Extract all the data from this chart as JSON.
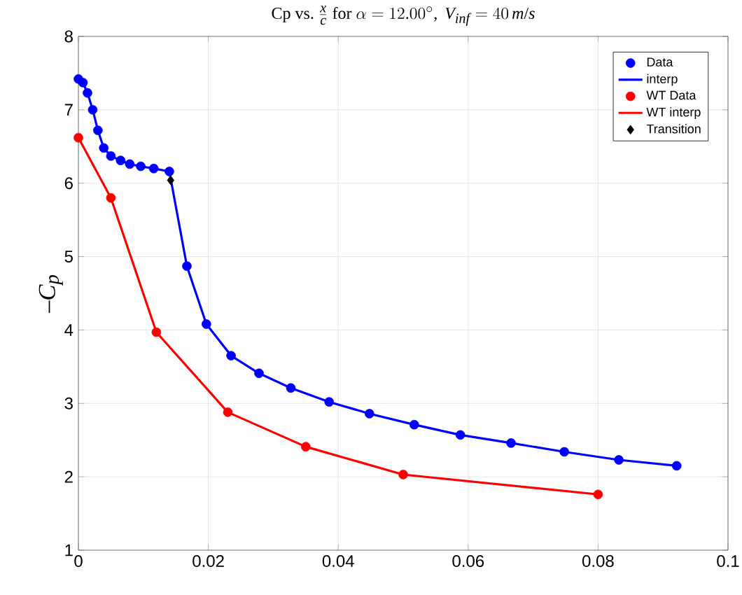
{
  "chart_data": {
    "type": "line",
    "title": "\\mathrm{Cp\\ vs.\\ }\\frac{x}{c}\\mathrm{\\ for\\ }\\alpha = 12.00^{\\circ},\\ V_{inf} = 40\\,m/s",
    "ylabel": "-C_p",
    "xlim": [
      0,
      0.1
    ],
    "ylim": [
      1,
      8
    ],
    "xticks": [
      0,
      0.02,
      0.04,
      0.06,
      0.08,
      0.1
    ],
    "yticks": [
      1,
      2,
      3,
      4,
      5,
      6,
      7,
      8
    ],
    "grid": true,
    "legend": "top right",
    "series": [
      {
        "name": "Data",
        "type": "scatter",
        "marker": "circle",
        "color": "#0000ff",
        "x": [
          0,
          0.0007,
          0.0014,
          0.0022,
          0.003,
          0.0039,
          0.005,
          0.0065,
          0.0079,
          0.0096,
          0.0116,
          0.014,
          0.0167,
          0.0197,
          0.0235,
          0.0278,
          0.0327,
          0.0386,
          0.0448,
          0.0517,
          0.0588,
          0.0666,
          0.0748,
          0.0832,
          0.0921
        ],
        "values": [
          7.42,
          7.37,
          7.23,
          7.0,
          6.72,
          6.48,
          6.37,
          6.31,
          6.26,
          6.23,
          6.2,
          6.16,
          4.87,
          4.08,
          3.65,
          3.41,
          3.21,
          3.02,
          2.86,
          2.71,
          2.57,
          2.46,
          2.34,
          2.23,
          2.15
        ]
      },
      {
        "name": "interp",
        "color": "#0000ff",
        "x": [
          0,
          0.0007,
          0.0014,
          0.0022,
          0.003,
          0.0039,
          0.005,
          0.0065,
          0.0079,
          0.0096,
          0.0116,
          0.014,
          0.0167,
          0.0197,
          0.0235,
          0.0278,
          0.0327,
          0.0386,
          0.0448,
          0.0517,
          0.0588,
          0.0666,
          0.0748,
          0.0832,
          0.0921
        ],
        "values": [
          7.42,
          7.37,
          7.23,
          7.0,
          6.72,
          6.48,
          6.37,
          6.31,
          6.26,
          6.23,
          6.2,
          6.16,
          4.87,
          4.08,
          3.65,
          3.41,
          3.21,
          3.02,
          2.86,
          2.71,
          2.57,
          2.46,
          2.34,
          2.23,
          2.15
        ]
      },
      {
        "name": "WT Data",
        "type": "scatter",
        "marker": "circle",
        "color": "#ff0000",
        "x": [
          0,
          0.005,
          0.012,
          0.023,
          0.035,
          0.05,
          0.08
        ],
        "values": [
          6.62,
          5.8,
          3.97,
          2.88,
          2.41,
          2.03,
          1.76
        ]
      },
      {
        "name": "WT interp",
        "color": "#ff0000",
        "x": [
          0,
          0.005,
          0.012,
          0.023,
          0.035,
          0.05,
          0.08
        ],
        "values": [
          6.62,
          5.8,
          3.97,
          2.88,
          2.41,
          2.03,
          1.76
        ]
      },
      {
        "name": "Transition",
        "type": "scatter",
        "marker": "diamond",
        "color": "#000000",
        "x": [
          0.0142
        ],
        "values": [
          6.04
        ]
      }
    ]
  }
}
